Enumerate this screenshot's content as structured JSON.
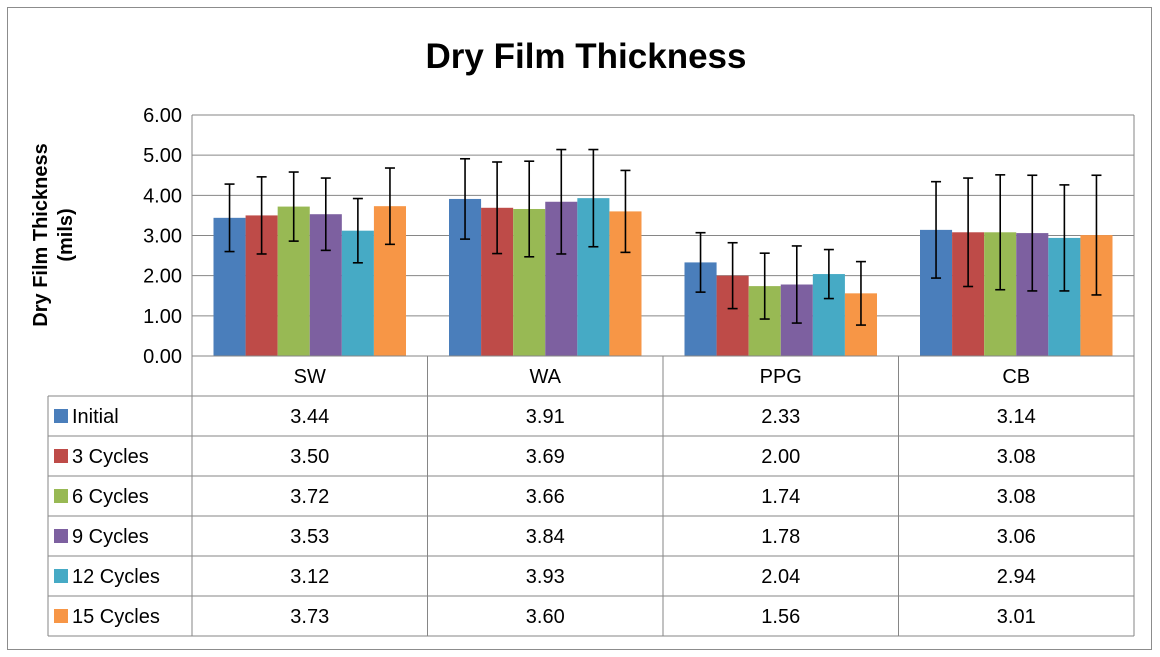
{
  "chart_data": {
    "type": "bar",
    "title": "Dry Film Thickness",
    "ylabel": "Dry Film Thickness (mils)",
    "ylabel_lines": [
      "Dry Film Thickness",
      "(mils)"
    ],
    "ylim": [
      0,
      6
    ],
    "yticks": [
      "0.00",
      "1.00",
      "2.00",
      "3.00",
      "4.00",
      "5.00",
      "6.00"
    ],
    "grid": true,
    "legend": "data-table",
    "categories": [
      "SW",
      "WA",
      "PPG",
      "CB"
    ],
    "series": [
      {
        "name": "Initial",
        "color": "#4a7ebb",
        "values": [
          3.44,
          3.91,
          2.33,
          3.14
        ],
        "labels": [
          "3.44",
          "3.91",
          "2.33",
          "3.14"
        ],
        "error": [
          0.84,
          1.0,
          0.74,
          1.2
        ]
      },
      {
        "name": "3 Cycles",
        "color": "#be4b48",
        "values": [
          3.5,
          3.69,
          2.0,
          3.08
        ],
        "labels": [
          "3.50",
          "3.69",
          "2.00",
          "3.08"
        ],
        "error": [
          0.96,
          1.14,
          0.82,
          1.35
        ]
      },
      {
        "name": "6 Cycles",
        "color": "#98b954",
        "values": [
          3.72,
          3.66,
          1.74,
          3.08
        ],
        "labels": [
          "3.72",
          "3.66",
          "1.74",
          "3.08"
        ],
        "error": [
          0.86,
          1.19,
          0.82,
          1.43
        ]
      },
      {
        "name": "9 Cycles",
        "color": "#7d60a0",
        "values": [
          3.53,
          3.84,
          1.78,
          3.06
        ],
        "labels": [
          "3.53",
          "3.84",
          "1.78",
          "3.06"
        ],
        "error": [
          0.9,
          1.3,
          0.96,
          1.44
        ]
      },
      {
        "name": "12 Cycles",
        "color": "#46aac5",
        "values": [
          3.12,
          3.93,
          2.04,
          2.94
        ],
        "labels": [
          "3.12",
          "3.93",
          "2.04",
          "2.94"
        ],
        "error": [
          0.8,
          1.21,
          0.61,
          1.32
        ]
      },
      {
        "name": "15 Cycles",
        "color": "#f79646",
        "values": [
          3.73,
          3.6,
          1.56,
          3.01
        ],
        "labels": [
          "3.73",
          "3.60",
          "1.56",
          "3.01"
        ],
        "error": [
          0.95,
          1.02,
          0.79,
          1.49
        ]
      }
    ]
  }
}
